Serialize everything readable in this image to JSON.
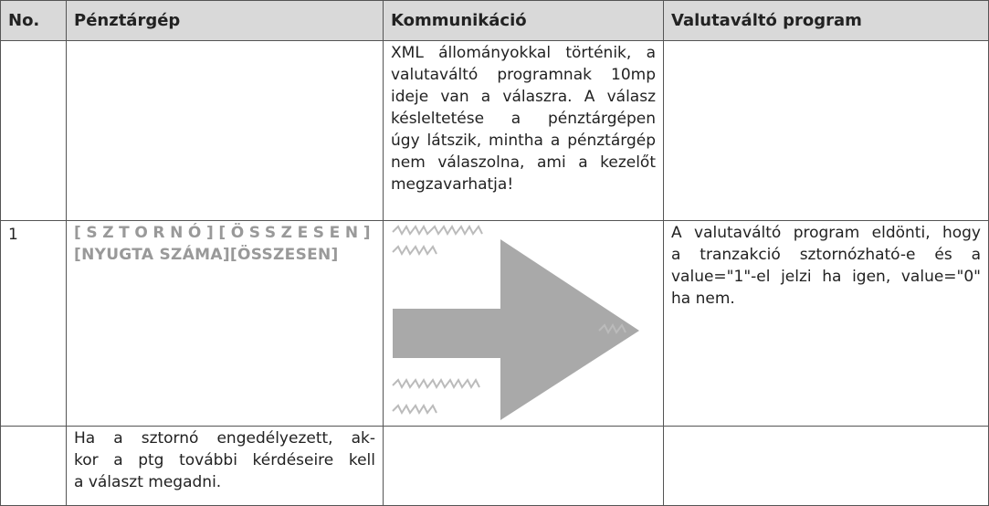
{
  "table": {
    "header": [
      "No.",
      "Pénztárgép",
      "Kommunikáció",
      "Valutaváltó program"
    ],
    "rows": [
      [
        null,
        null,
        {
          "lines": [
            "XML állományokkal történik, a",
            "valutaváltó programnak 10mp",
            "ideje van a válaszra. A válasz",
            "késleltetése a pénztárgépen",
            "úgy látszik, mintha a pénztárgép",
            "nem válaszolna, ami a kezelőt",
            "megzavarhatja!"
          ]
        },
        null
      ],
      [
        "1",
        {
          "lines": [
            "[SZTORNÓ][ÖSSZESEN]",
            "[NYUGTA SZÁMA][ÖSSZESEN]"
          ]
        },
        null,
        {
          "lines": [
            "A valutaváltó program eldönti, hogy",
            "a tranzakció sztornózható-e és a",
            "value=\"1\"-el jelzi ha igen, value=\"0\"",
            "ha nem."
          ]
        }
      ],
      [
        null,
        {
          "lines": [
            "Ha a sztornó engedélyezett, ak-",
            "kor a ptg további kérdéseire kell",
            "a választ megadni."
          ]
        },
        null,
        null
      ]
    ]
  }
}
